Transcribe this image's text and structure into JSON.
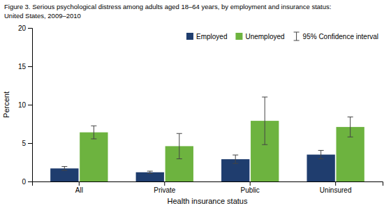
{
  "chart_data": {
    "type": "bar",
    "title": "Figure 3. Serious psychological distress among adults aged 18–64 years, by employment and insurance status:",
    "subtitle": "United States, 2009–2010",
    "categories": [
      "All",
      "Private",
      "Public",
      "Uninsured"
    ],
    "series": [
      {
        "name": "Employed",
        "color": "#1f3d6e",
        "values": [
          1.7,
          1.2,
          2.9,
          3.5
        ],
        "errors": [
          0.25,
          0.15,
          0.55,
          0.55
        ]
      },
      {
        "name": "Unemployed",
        "color": "#6db33f",
        "values": [
          6.4,
          4.6,
          7.9,
          7.1
        ],
        "errors": [
          0.85,
          1.65,
          3.1,
          1.3
        ]
      }
    ],
    "error_bar_label": "95% Confidence interval",
    "xlabel": "Health insurance status",
    "ylabel": "Percent",
    "ylim": [
      0,
      20
    ],
    "yticks": [
      0,
      5,
      10,
      15,
      20
    ],
    "grid": false,
    "legend": "upper right"
  }
}
